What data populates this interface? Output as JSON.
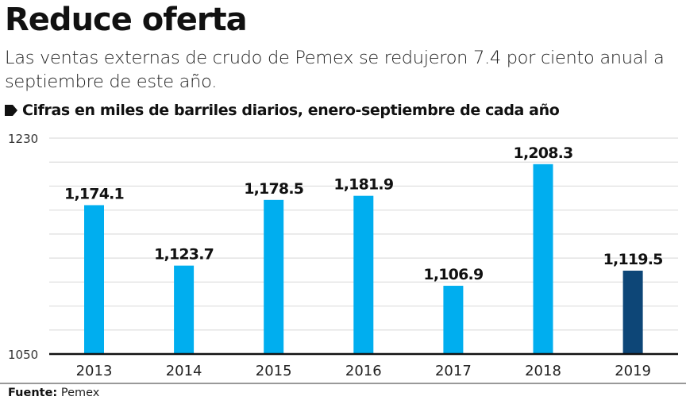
{
  "header": {
    "title": "Reduce oferta",
    "subtitle": "Las ventas externas de crudo de Pemex se redujeron 7.4 por ciento anual a septiembre de este año.",
    "units": "Cifras en miles de barriles diarios, enero-septiembre de cada año"
  },
  "footer": {
    "source_label": "Fuente:",
    "source_value": "Pemex"
  },
  "colors": {
    "bar": "#00AEEF",
    "bar_highlight": "#0D4677",
    "grid": "#dddddd",
    "axis": "#111111"
  },
  "chart_data": {
    "type": "bar",
    "title": "Reduce oferta",
    "xlabel": "",
    "ylabel": "",
    "categories": [
      "2013",
      "2014",
      "2015",
      "2016",
      "2017",
      "2018",
      "2019"
    ],
    "values": [
      1174.1,
      1123.7,
      1178.5,
      1181.9,
      1106.9,
      1208.3,
      1119.5
    ],
    "value_labels": [
      "1,174.1",
      "1,123.7",
      "1,178.5",
      "1,181.9",
      "1,106.9",
      "1,208.3",
      "1,119.5"
    ],
    "highlight_index": 6,
    "ylim": [
      1050,
      1230
    ],
    "ytick_labels": [
      "1230",
      "1050"
    ],
    "grid_step": 20,
    "grid": true
  }
}
